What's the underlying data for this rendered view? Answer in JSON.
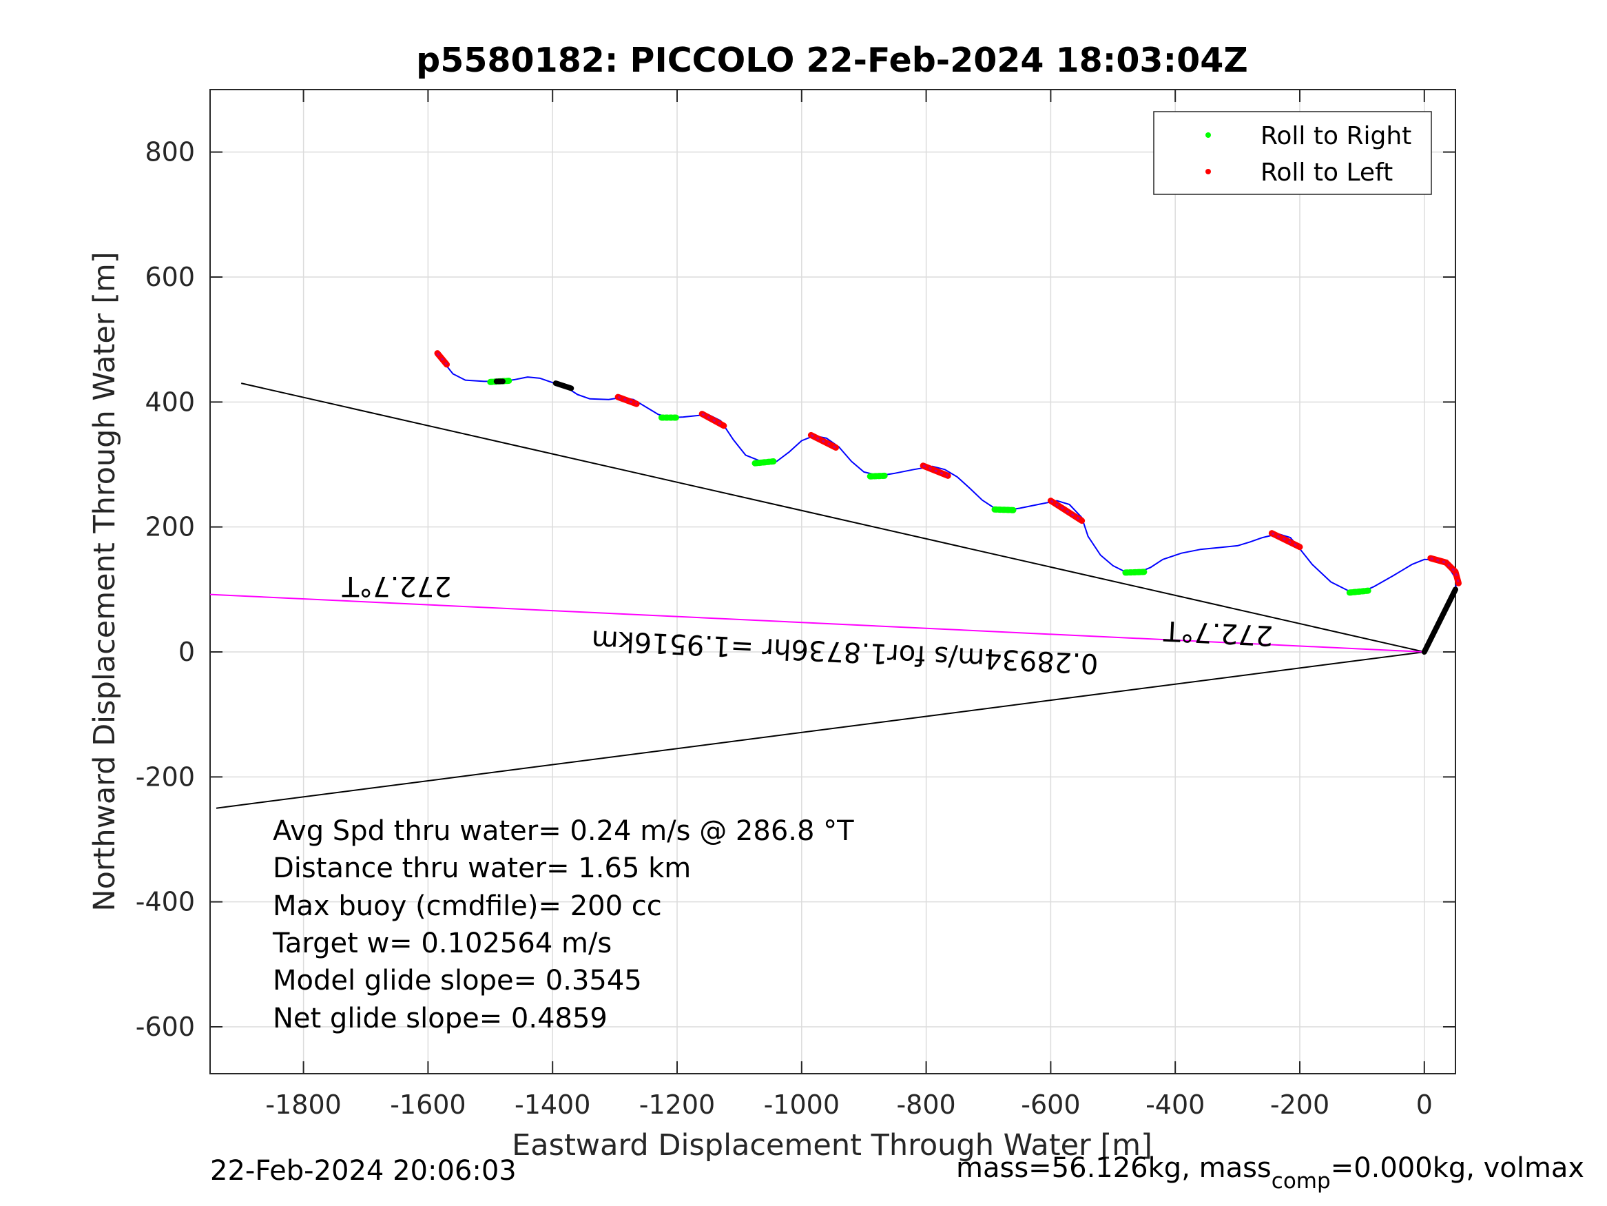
{
  "chart_data": {
    "type": "line",
    "title": "p5580182: PICCOLO 22-Feb-2024 18:03:04Z",
    "xlabel": "Eastward Displacement Through Water [m]",
    "ylabel": "Northward Displacement Through Water [m]",
    "xlim": [
      -1950,
      50
    ],
    "ylim": [
      -675,
      900
    ],
    "xticks": [
      -1800,
      -1600,
      -1400,
      -1200,
      -1000,
      -800,
      -600,
      -400,
      -200,
      0
    ],
    "yticks": [
      -600,
      -400,
      -200,
      0,
      200,
      400,
      600,
      800
    ],
    "grid": true,
    "legend": {
      "placement": "top-right",
      "entries": [
        {
          "label": "Roll to Right",
          "color": "#00ff00"
        },
        {
          "label": "Roll to Left",
          "color": "#ff0000"
        }
      ]
    },
    "track": {
      "color": "#0000ff",
      "points": [
        [
          -1580,
          470
        ],
        [
          -1560,
          445
        ],
        [
          -1540,
          435
        ],
        [
          -1510,
          433
        ],
        [
          -1480,
          433
        ],
        [
          -1460,
          436
        ],
        [
          -1440,
          440
        ],
        [
          -1420,
          438
        ],
        [
          -1400,
          431
        ],
        [
          -1380,
          425
        ],
        [
          -1360,
          412
        ],
        [
          -1340,
          405
        ],
        [
          -1310,
          404
        ],
        [
          -1290,
          407
        ],
        [
          -1270,
          404
        ],
        [
          -1250,
          392
        ],
        [
          -1230,
          380
        ],
        [
          -1210,
          375
        ],
        [
          -1190,
          376
        ],
        [
          -1170,
          378
        ],
        [
          -1150,
          380
        ],
        [
          -1130,
          370
        ],
        [
          -1110,
          340
        ],
        [
          -1090,
          315
        ],
        [
          -1060,
          303
        ],
        [
          -1040,
          305
        ],
        [
          -1020,
          320
        ],
        [
          -1000,
          338
        ],
        [
          -980,
          346
        ],
        [
          -960,
          342
        ],
        [
          -940,
          328
        ],
        [
          -920,
          305
        ],
        [
          -900,
          288
        ],
        [
          -875,
          282
        ],
        [
          -850,
          286
        ],
        [
          -820,
          292
        ],
        [
          -790,
          297
        ],
        [
          -770,
          292
        ],
        [
          -750,
          280
        ],
        [
          -730,
          262
        ],
        [
          -710,
          243
        ],
        [
          -690,
          230
        ],
        [
          -670,
          227
        ],
        [
          -650,
          230
        ],
        [
          -620,
          236
        ],
        [
          -590,
          242
        ],
        [
          -570,
          236
        ],
        [
          -550,
          215
        ],
        [
          -540,
          185
        ],
        [
          -520,
          155
        ],
        [
          -500,
          138
        ],
        [
          -480,
          128
        ],
        [
          -460,
          127
        ],
        [
          -440,
          135
        ],
        [
          -420,
          148
        ],
        [
          -390,
          158
        ],
        [
          -360,
          164
        ],
        [
          -330,
          167
        ],
        [
          -300,
          170
        ],
        [
          -280,
          176
        ],
        [
          -260,
          183
        ],
        [
          -235,
          189
        ],
        [
          -215,
          183
        ],
        [
          -200,
          165
        ],
        [
          -180,
          140
        ],
        [
          -150,
          112
        ],
        [
          -120,
          97
        ],
        [
          -100,
          96
        ],
        [
          -80,
          105
        ],
        [
          -50,
          122
        ],
        [
          -20,
          140
        ],
        [
          0,
          148
        ],
        [
          20,
          147
        ],
        [
          38,
          137
        ],
        [
          52,
          115
        ],
        [
          50,
          100
        ]
      ]
    },
    "roll_right_segments": [
      [
        [
          -1500,
          432
        ],
        [
          -1470,
          434
        ]
      ],
      [
        [
          -1225,
          375
        ],
        [
          -1200,
          375
        ]
      ],
      [
        [
          -1075,
          302
        ],
        [
          -1045,
          305
        ]
      ],
      [
        [
          -890,
          281
        ],
        [
          -865,
          282
        ]
      ],
      [
        [
          -690,
          228
        ],
        [
          -660,
          227
        ]
      ],
      [
        [
          -480,
          127
        ],
        [
          -450,
          128
        ]
      ],
      [
        [
          -120,
          95
        ],
        [
          -90,
          98
        ]
      ]
    ],
    "roll_left_segments": [
      [
        [
          -1585,
          478
        ],
        [
          -1570,
          460
        ]
      ],
      [
        [
          -1295,
          408
        ],
        [
          -1265,
          397
        ]
      ],
      [
        [
          -1160,
          381
        ],
        [
          -1125,
          362
        ]
      ],
      [
        [
          -985,
          347
        ],
        [
          -945,
          327
        ]
      ],
      [
        [
          -805,
          298
        ],
        [
          -765,
          282
        ]
      ],
      [
        [
          -600,
          242
        ],
        [
          -550,
          210
        ]
      ],
      [
        [
          -245,
          190
        ],
        [
          -200,
          168
        ]
      ],
      [
        [
          10,
          150
        ],
        [
          35,
          143
        ],
        [
          50,
          128
        ],
        [
          55,
          110
        ]
      ]
    ],
    "other_black_segments": [
      [
        [
          -1490,
          433
        ],
        [
          -1480,
          433
        ]
      ],
      [
        [
          -1395,
          430
        ],
        [
          -1370,
          422
        ]
      ],
      [
        [
          0,
          0
        ],
        [
          50,
          100
        ]
      ]
    ],
    "lines": [
      {
        "name": "upper bound",
        "color": "#000000",
        "points": [
          [
            -1900,
            430
          ],
          [
            0,
            0
          ]
        ]
      },
      {
        "name": "lower bound",
        "color": "#000000",
        "points": [
          [
            -1940,
            -250
          ],
          [
            0,
            0
          ]
        ]
      },
      {
        "name": "net current",
        "color": "#ff00ff",
        "points": [
          [
            -1950,
            92
          ],
          [
            0,
            0
          ]
        ]
      }
    ],
    "annotations": [
      {
        "text": "272.7°T",
        "x": -1650,
        "y": 120,
        "rotation": 180
      },
      {
        "text": "272.7°T",
        "x": -330,
        "y": 45,
        "rotation": 182.7
      },
      {
        "text": "0.28934m/s for1.8736hr =1.9516km",
        "x": -930,
        "y": 15,
        "rotation": 182.7
      }
    ]
  },
  "stats": [
    "Avg Spd thru water=  0.24 m/s @ 286.8 °T",
    "Distance thru water=  1.65 km",
    "Max buoy (cmdfile)= 200 cc",
    "Target w= 0.102564 m/s",
    "Model glide slope= 0.3545",
    "Net glide slope= 0.4859"
  ],
  "footer": {
    "timestamp": "22-Feb-2024 20:06:03",
    "mass_text_pre": "mass=56.126kg, mass",
    "mass_sub": "comp",
    "mass_text_post": "=0.000kg, volmax"
  }
}
